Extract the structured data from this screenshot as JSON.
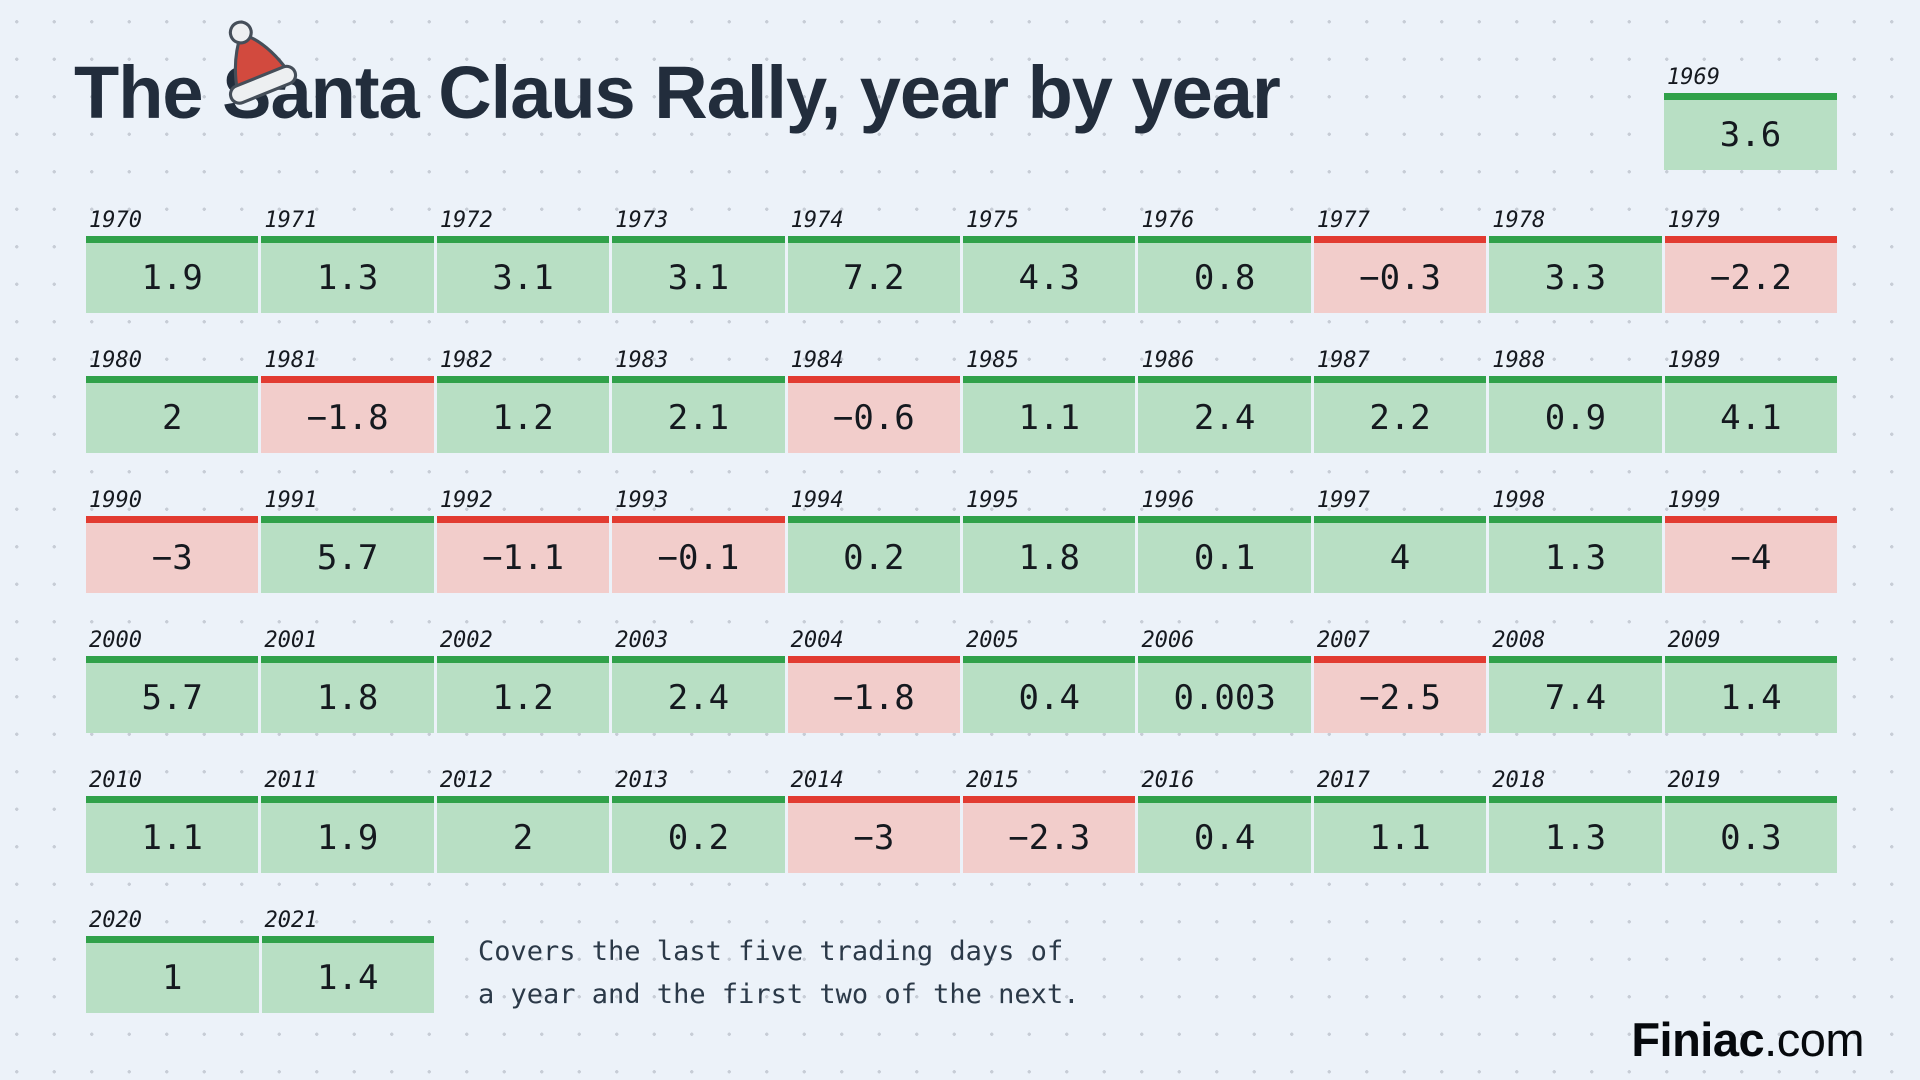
{
  "title": "The Santa Claus Rally, year by year",
  "note": {
    "lines": [
      "Covers the last five trading days of",
      "a year and the first two of the next."
    ]
  },
  "brand": {
    "name": "Finiac",
    "suffix": ".com"
  },
  "colors": {
    "background": "#ecf2f9",
    "background_dot": "#c7cdd6",
    "positive_bar": "#30a14a",
    "positive_fill": "#b8dfc4",
    "negative_bar": "#e23b31",
    "negative_fill": "#f2cdcb",
    "title_text": "#222d3c",
    "value_text": "#15191f",
    "note_text": "#2b3948",
    "brand_text": "#06090d",
    "santa_hat_red": "#d24a3e",
    "santa_hat_trim": "#edeff1"
  },
  "chart_data": {
    "type": "table",
    "title": "The Santa Claus Rally, year by year",
    "note": "Covers the last five trading days of a year and the first two of the next.",
    "value_meaning": "Santa Claus Rally return per year; green cells positive, red cells negative",
    "positive_color": "#30a14a",
    "negative_color": "#e23b31",
    "rows": [
      {
        "years": [
          1969
        ],
        "values": [
          3.6
        ]
      },
      {
        "years": [
          1970,
          1971,
          1972,
          1973,
          1974,
          1975,
          1976,
          1977,
          1978,
          1979
        ],
        "values": [
          1.9,
          1.3,
          3.1,
          3.1,
          7.2,
          4.3,
          0.8,
          -0.3,
          3.3,
          -2.2
        ]
      },
      {
        "years": [
          1980,
          1981,
          1982,
          1983,
          1984,
          1985,
          1986,
          1987,
          1988,
          1989
        ],
        "values": [
          2,
          -1.8,
          1.2,
          2.1,
          -0.6,
          1.1,
          2.4,
          2.2,
          0.9,
          4.1
        ]
      },
      {
        "years": [
          1990,
          1991,
          1992,
          1993,
          1994,
          1995,
          1996,
          1997,
          1998,
          1999
        ],
        "values": [
          -3,
          5.7,
          -1.1,
          -0.1,
          0.2,
          1.8,
          0.1,
          4,
          1.3,
          -4
        ]
      },
      {
        "years": [
          2000,
          2001,
          2002,
          2003,
          2004,
          2005,
          2006,
          2007,
          2008,
          2009
        ],
        "values": [
          5.7,
          1.8,
          1.2,
          2.4,
          -1.8,
          0.4,
          0.003,
          -2.5,
          7.4,
          1.4
        ]
      },
      {
        "years": [
          2010,
          2011,
          2012,
          2013,
          2014,
          2015,
          2016,
          2017,
          2018,
          2019
        ],
        "values": [
          1.1,
          1.9,
          2,
          0.2,
          -3,
          -2.3,
          0.4,
          1.1,
          1.3,
          0.3
        ]
      },
      {
        "years": [
          2020,
          2021
        ],
        "values": [
          1,
          1.4
        ]
      }
    ]
  }
}
